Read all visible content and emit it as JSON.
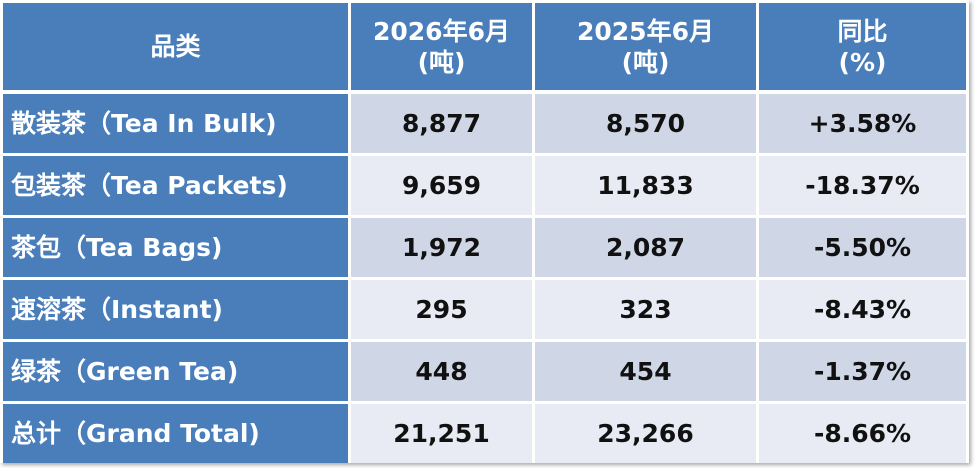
{
  "table": {
    "header": [
      [
        "品类"
      ],
      [
        "2026年6月",
        "(吨)"
      ],
      [
        "2025年6月",
        "(吨)"
      ],
      [
        "同比",
        "(%)"
      ]
    ],
    "rows": [
      [
        "散装茶（Tea In Bulk)",
        "8,877",
        "8,570",
        "+3.58%"
      ],
      [
        "包装茶（Tea Packets)",
        "9,659",
        "11,833",
        "-18.37%"
      ],
      [
        "茶包（Tea Bags)",
        "1,972",
        "2,087",
        "-5.50%"
      ],
      [
        "速溶茶（Instant)",
        "295",
        "323",
        "-8.43%"
      ],
      [
        "绿茶（Green Tea)",
        "448",
        "454",
        "-1.37%"
      ],
      [
        "总计（Grand Total)",
        "21,251",
        "23,266",
        "-8.66%"
      ]
    ]
  }
}
